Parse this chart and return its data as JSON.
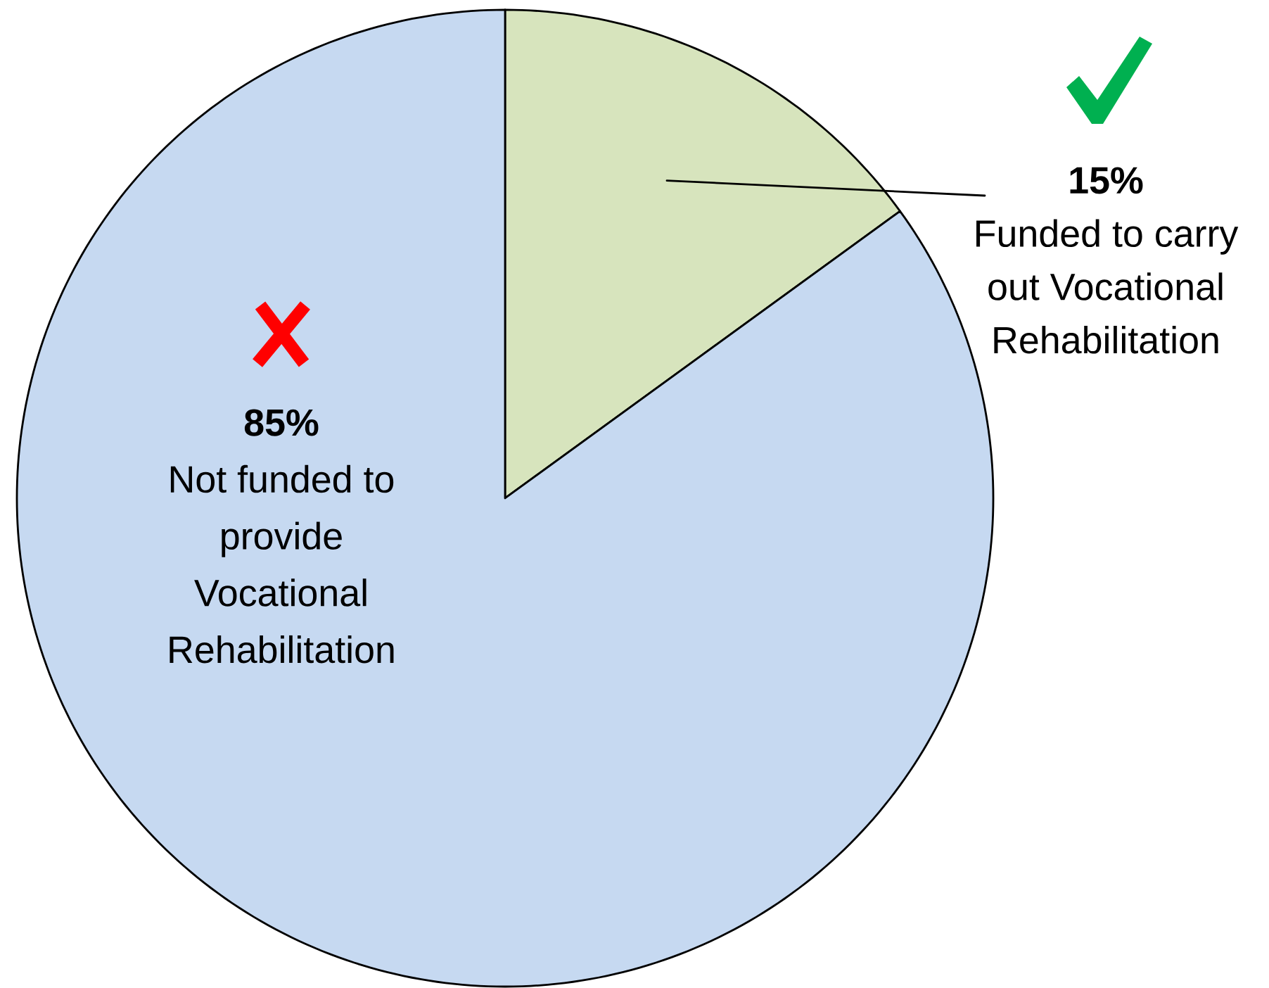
{
  "chart_data": {
    "type": "pie",
    "categories": [
      "Funded to carry out Vocational Rehabilitation",
      "Not funded to provide Vocational Rehabilitation"
    ],
    "values": [
      15,
      85
    ],
    "colors": [
      "#d7e4bd",
      "#c6d9f1"
    ],
    "value_labels": [
      "15%",
      "85%"
    ]
  }
}
